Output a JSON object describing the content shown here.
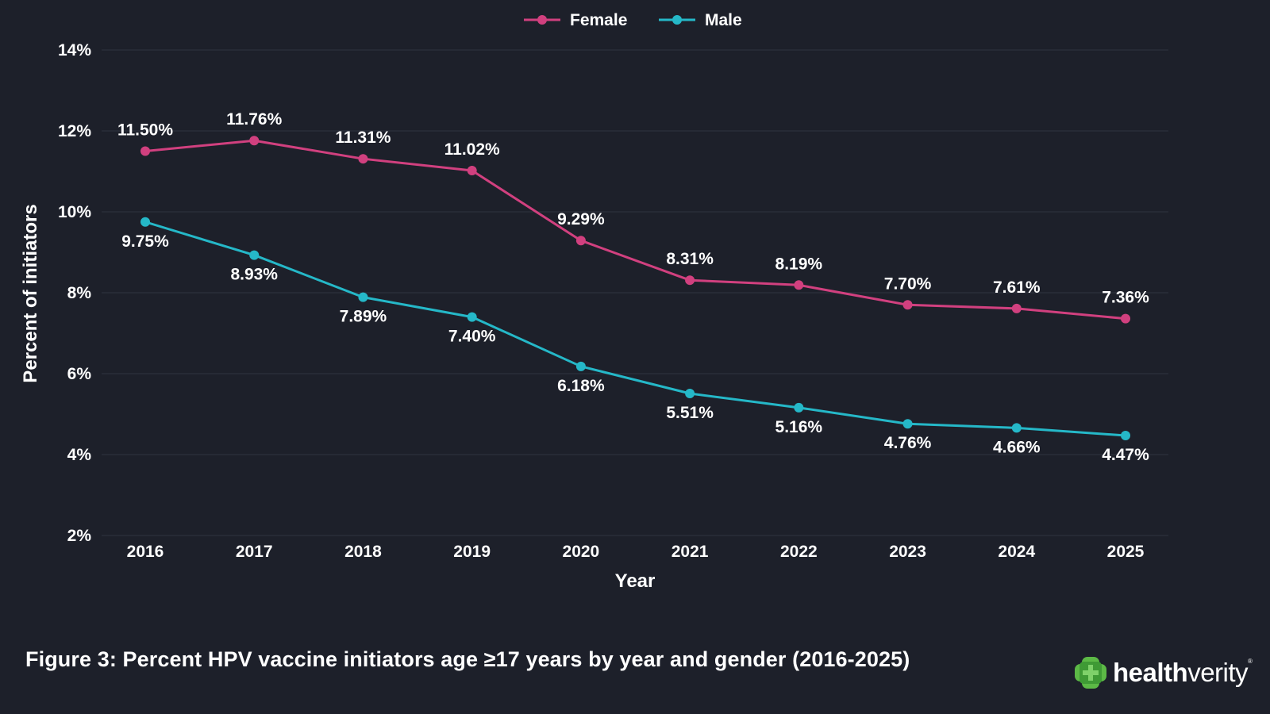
{
  "chart_data": {
    "type": "line",
    "title": "",
    "xlabel": "Year",
    "ylabel": "Percent of initiators",
    "categories": [
      "2016",
      "2017",
      "2018",
      "2019",
      "2020",
      "2021",
      "2022",
      "2023",
      "2024",
      "2025"
    ],
    "ylim": [
      2,
      14
    ],
    "yticks": [
      2,
      4,
      6,
      8,
      10,
      12,
      14
    ],
    "ytick_labels": [
      "2%",
      "4%",
      "6%",
      "8%",
      "10%",
      "12%",
      "14%"
    ],
    "grid": true,
    "legend_position": "top-center",
    "series": [
      {
        "name": "Female",
        "color": "#d1407f",
        "label_position": "above",
        "values": [
          11.5,
          11.76,
          11.31,
          11.02,
          9.29,
          8.31,
          8.19,
          7.7,
          7.61,
          7.36
        ],
        "labels": [
          "11.50%",
          "11.76%",
          "11.31%",
          "11.02%",
          "9.29%",
          "8.31%",
          "8.19%",
          "7.70%",
          "7.61%",
          "7.36%"
        ]
      },
      {
        "name": "Male",
        "color": "#25b8c8",
        "label_position": "below",
        "values": [
          9.75,
          8.93,
          7.89,
          7.4,
          6.18,
          5.51,
          5.16,
          4.76,
          4.66,
          4.47
        ],
        "labels": [
          "9.75%",
          "8.93%",
          "7.89%",
          "7.40%",
          "6.18%",
          "5.51%",
          "5.16%",
          "4.76%",
          "4.66%",
          "4.47%"
        ]
      }
    ]
  },
  "caption": "Figure 3: Percent HPV vaccine initiators age ≥17 years by year and gender (2016-2025)",
  "logo": {
    "text_bold": "health",
    "text_regular": "verity",
    "registered": "®",
    "icon": "green-cross-logo-icon",
    "color": "#5cb946"
  },
  "colors": {
    "background": "#1d202a",
    "grid": "#2a2e39",
    "text": "#ffffff"
  }
}
